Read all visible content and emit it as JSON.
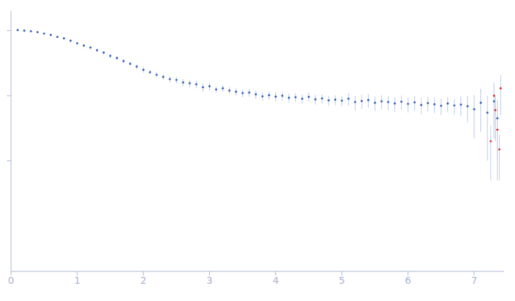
{
  "chart_data": {
    "type": "scatter",
    "log": "y",
    "grid": false,
    "tick_labels": "x",
    "xlim": [
      0,
      7.45
    ],
    "xticks": [
      0,
      1,
      2,
      3,
      4,
      5,
      6,
      7
    ],
    "ylim": [
      0.002,
      20
    ],
    "yticks": [
      0.1,
      1,
      10
    ],
    "series": [
      {
        "color": "#3a64b8",
        "marker": "circle",
        "x": [
          0.1,
          0.2,
          0.3,
          0.4,
          0.5,
          0.6,
          0.7,
          0.8,
          0.9,
          1.0,
          1.1,
          1.2,
          1.3,
          1.4,
          1.5,
          1.6,
          1.7,
          1.8,
          1.9,
          2.0,
          2.1,
          2.2,
          2.3,
          2.4,
          2.5,
          2.6,
          2.7,
          2.8,
          2.9,
          3.0,
          3.1,
          3.2,
          3.3,
          3.4,
          3.5,
          3.6,
          3.7,
          3.8,
          3.9,
          4.0,
          4.1,
          4.2,
          4.3,
          4.4,
          4.5,
          4.6,
          4.7,
          4.8,
          4.9,
          5.0,
          5.1,
          5.2,
          5.3,
          5.4,
          5.5,
          5.6,
          5.7,
          5.8,
          5.9,
          6.0,
          6.1,
          6.2,
          6.3,
          6.4,
          6.5,
          6.6,
          6.7,
          6.8,
          6.9,
          7.0,
          7.1,
          7.2,
          7.3,
          7.35
        ],
        "values": [
          10.2,
          10.0,
          9.8,
          9.5,
          9.0,
          8.6,
          8.0,
          7.6,
          7.0,
          6.4,
          5.9,
          5.5,
          5.0,
          4.6,
          4.1,
          3.8,
          3.4,
          3.1,
          2.8,
          2.5,
          2.3,
          2.1,
          1.95,
          1.8,
          1.75,
          1.6,
          1.55,
          1.5,
          1.35,
          1.4,
          1.25,
          1.3,
          1.2,
          1.15,
          1.1,
          1.12,
          1.05,
          0.98,
          1.02,
          0.97,
          1.0,
          0.93,
          0.95,
          0.9,
          0.96,
          0.88,
          0.91,
          0.85,
          0.87,
          0.84,
          0.9,
          0.8,
          0.83,
          0.86,
          0.78,
          0.82,
          0.8,
          0.76,
          0.81,
          0.75,
          0.79,
          0.72,
          0.77,
          0.74,
          0.7,
          0.76,
          0.71,
          0.73,
          0.69,
          0.62,
          0.78,
          0.55,
          0.82,
          0.45
        ],
        "errors": [
          0.3,
          0.3,
          0.3,
          0.3,
          0.3,
          0.3,
          0.3,
          0.3,
          0.3,
          0.3,
          0.3,
          0.3,
          0.3,
          0.3,
          0.3,
          0.25,
          0.25,
          0.25,
          0.25,
          0.25,
          0.2,
          0.2,
          0.2,
          0.2,
          0.2,
          0.2,
          0.2,
          0.2,
          0.2,
          0.2,
          0.15,
          0.15,
          0.15,
          0.15,
          0.15,
          0.15,
          0.15,
          0.15,
          0.15,
          0.15,
          0.15,
          0.15,
          0.15,
          0.15,
          0.15,
          0.15,
          0.15,
          0.15,
          0.15,
          0.15,
          0.2,
          0.2,
          0.2,
          0.2,
          0.2,
          0.2,
          0.2,
          0.2,
          0.2,
          0.2,
          0.2,
          0.2,
          0.2,
          0.2,
          0.2,
          0.2,
          0.2,
          0.25,
          0.3,
          0.4,
          0.5,
          0.45,
          0.6,
          0.4
        ]
      },
      {
        "color": "#e03030",
        "marker": "circle",
        "x": [
          7.25,
          7.3,
          7.32,
          7.35,
          7.38,
          7.4
        ],
        "values": [
          0.2,
          1.0,
          0.6,
          0.3,
          0.15,
          1.3
        ],
        "errors": [
          0.15,
          0.6,
          0.4,
          0.2,
          0.1,
          0.8
        ]
      }
    ]
  }
}
